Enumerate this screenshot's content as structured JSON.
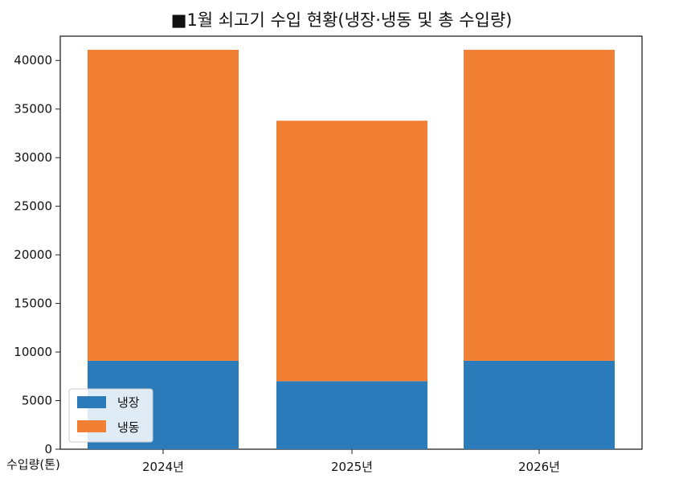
{
  "chart_data": {
    "type": "bar",
    "stacked": true,
    "title": "■1월 쇠고기 수입 현황(냉장·냉동 및 총 수입량)",
    "ylabel": "수입량(톤)",
    "xlabel": "",
    "categories": [
      "2024년",
      "2025년",
      "2026년"
    ],
    "series": [
      {
        "name": "냉장",
        "color": "#2b7bba",
        "values": [
          9100,
          7000,
          9100
        ]
      },
      {
        "name": "냉동",
        "color": "#f28034",
        "values": [
          32000,
          26800,
          32000
        ]
      }
    ],
    "ylim": [
      0,
      42500
    ],
    "yticks": [
      0,
      5000,
      10000,
      15000,
      20000,
      25000,
      30000,
      35000,
      40000
    ],
    "grid": false,
    "legend": "bottom-left"
  }
}
